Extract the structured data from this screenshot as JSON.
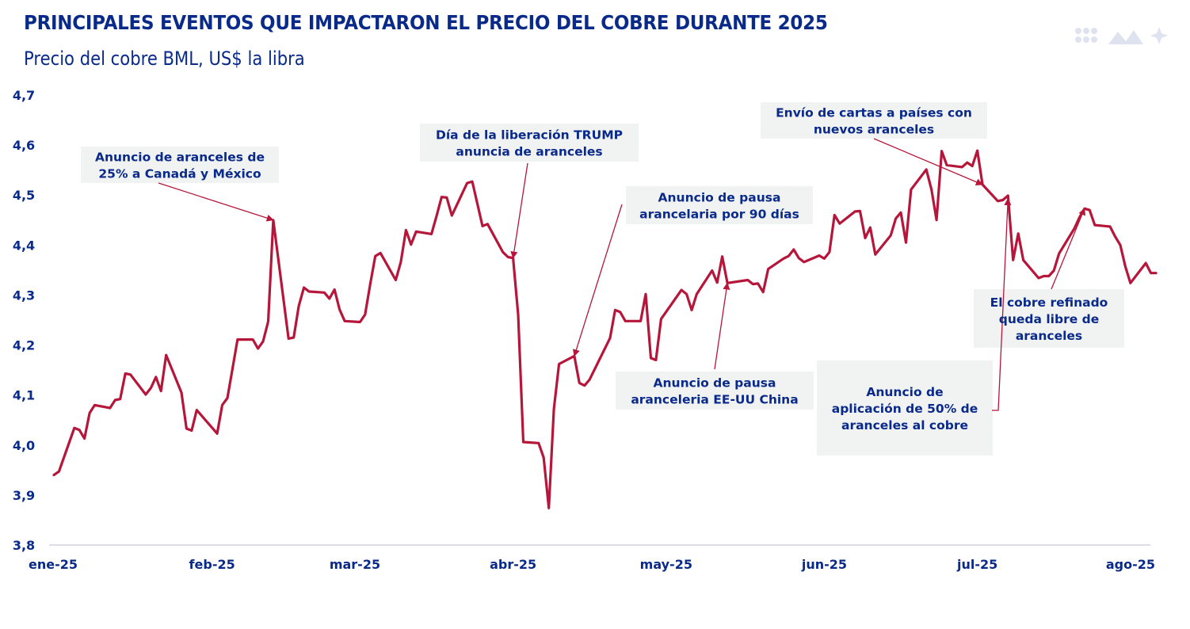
{
  "header": {
    "title": "PRINCIPALES EVENTOS QUE IMPACTARON EL PRECIO DEL COBRE DURANTE  2025",
    "subtitle": "Precio del cobre BML, US$ la libra"
  },
  "logo": {
    "icon": "brand-logo-icon"
  },
  "colors": {
    "line": "#b5163a",
    "text": "#0a2a8a",
    "box": "#f1f2f2",
    "axis": "#cfd4de"
  },
  "chart_data": {
    "type": "line",
    "title": "PRINCIPALES EVENTOS QUE IMPACTARON EL PRECIO DEL COBRE DURANTE  2025",
    "subtitle": "Precio del cobre BML, US$ la libra",
    "xlabel": "",
    "ylabel": "",
    "ylim": [
      3.8,
      4.7
    ],
    "yticks": [
      "4,7",
      "4,6",
      "4,5",
      "4,4",
      "4,3",
      "4,2",
      "4,1",
      "4,0",
      "3,9",
      "3,8"
    ],
    "xticks": [
      "ene-25",
      "feb-25",
      "mar-25",
      "abr-25",
      "may-25",
      "jun-25",
      "jul-25",
      "ago-25"
    ],
    "grid": false,
    "series": [
      {
        "name": "Precio del cobre BML",
        "color": "#b5163a",
        "points": [
          [
            0,
            3.94
          ],
          [
            1,
            3.947
          ],
          [
            4,
            4.034
          ],
          [
            5,
            4.03
          ],
          [
            6,
            4.013
          ],
          [
            7,
            4.064
          ],
          [
            8,
            4.08
          ],
          [
            11,
            4.074
          ],
          [
            12,
            4.09
          ],
          [
            13,
            4.092
          ],
          [
            14,
            4.143
          ],
          [
            15,
            4.141
          ],
          [
            18,
            4.101
          ],
          [
            19,
            4.114
          ],
          [
            20,
            4.136
          ],
          [
            21,
            4.108
          ],
          [
            22,
            4.18
          ],
          [
            25,
            4.105
          ],
          [
            26,
            4.033
          ],
          [
            27,
            4.029
          ],
          [
            28,
            4.07
          ],
          [
            32,
            4.023
          ],
          [
            33,
            4.08
          ],
          [
            34,
            4.094
          ],
          [
            35,
            4.152
          ],
          [
            36,
            4.211
          ],
          [
            39,
            4.211
          ],
          [
            40,
            4.193
          ],
          [
            41,
            4.207
          ],
          [
            42,
            4.247
          ],
          [
            43,
            4.45
          ],
          [
            46,
            4.213
          ],
          [
            47,
            4.215
          ],
          [
            48,
            4.278
          ],
          [
            49,
            4.315
          ],
          [
            50,
            4.307
          ],
          [
            53,
            4.305
          ],
          [
            54,
            4.293
          ],
          [
            55,
            4.311
          ],
          [
            56,
            4.271
          ],
          [
            57,
            4.248
          ],
          [
            60,
            4.246
          ],
          [
            61,
            4.261
          ],
          [
            62,
            4.322
          ],
          [
            63,
            4.378
          ],
          [
            64,
            4.384
          ],
          [
            67,
            4.33
          ],
          [
            68,
            4.366
          ],
          [
            69,
            4.43
          ],
          [
            70,
            4.401
          ],
          [
            71,
            4.427
          ],
          [
            74,
            4.422
          ],
          [
            75,
            4.458
          ],
          [
            76,
            4.496
          ],
          [
            77,
            4.495
          ],
          [
            78,
            4.459
          ],
          [
            81,
            4.524
          ],
          [
            82,
            4.527
          ],
          [
            84,
            4.438
          ],
          [
            85,
            4.442
          ],
          [
            88,
            4.386
          ],
          [
            89,
            4.376
          ],
          [
            90,
            4.374
          ],
          [
            91,
            4.261
          ],
          [
            92,
            4.006
          ],
          [
            95,
            4.004
          ],
          [
            96,
            3.975
          ],
          [
            97,
            3.874
          ],
          [
            98,
            4.072
          ],
          [
            99,
            4.162
          ],
          [
            102,
            4.178
          ],
          [
            103,
            4.124
          ],
          [
            104,
            4.119
          ],
          [
            105,
            4.131
          ],
          [
            109,
            4.214
          ],
          [
            110,
            4.27
          ],
          [
            111,
            4.266
          ],
          [
            112,
            4.248
          ],
          [
            115,
            4.248
          ],
          [
            116,
            4.302
          ],
          [
            117,
            4.174
          ],
          [
            118,
            4.17
          ],
          [
            119,
            4.252
          ],
          [
            123,
            4.31
          ],
          [
            124,
            4.302
          ],
          [
            125,
            4.27
          ],
          [
            126,
            4.302
          ],
          [
            129,
            4.349
          ],
          [
            130,
            4.325
          ],
          [
            131,
            4.377
          ],
          [
            132,
            4.324
          ],
          [
            136,
            4.33
          ],
          [
            137,
            4.322
          ],
          [
            138,
            4.323
          ],
          [
            139,
            4.306
          ],
          [
            140,
            4.352
          ],
          [
            143,
            4.373
          ],
          [
            144,
            4.378
          ],
          [
            145,
            4.391
          ],
          [
            146,
            4.374
          ],
          [
            147,
            4.366
          ],
          [
            150,
            4.379
          ],
          [
            151,
            4.373
          ],
          [
            152,
            4.386
          ],
          [
            153,
            4.46
          ],
          [
            154,
            4.443
          ],
          [
            157,
            4.467
          ],
          [
            158,
            4.468
          ],
          [
            159,
            4.414
          ],
          [
            160,
            4.435
          ],
          [
            161,
            4.381
          ],
          [
            164,
            4.419
          ],
          [
            165,
            4.453
          ],
          [
            166,
            4.465
          ],
          [
            167,
            4.405
          ],
          [
            168,
            4.511
          ],
          [
            171,
            4.551
          ],
          [
            172,
            4.511
          ],
          [
            173,
            4.45
          ],
          [
            174,
            4.588
          ],
          [
            175,
            4.56
          ],
          [
            178,
            4.556
          ],
          [
            179,
            4.565
          ],
          [
            180,
            4.558
          ],
          [
            181,
            4.589
          ],
          [
            182,
            4.521
          ],
          [
            185,
            4.488
          ],
          [
            186,
            4.49
          ],
          [
            187,
            4.499
          ],
          [
            188,
            4.37
          ],
          [
            189,
            4.423
          ],
          [
            190,
            4.37
          ],
          [
            193,
            4.334
          ],
          [
            194,
            4.338
          ],
          [
            195,
            4.338
          ],
          [
            196,
            4.349
          ],
          [
            197,
            4.383
          ],
          [
            200,
            4.433
          ],
          [
            201,
            4.455
          ],
          [
            202,
            4.473
          ],
          [
            203,
            4.47
          ],
          [
            204,
            4.44
          ],
          [
            207,
            4.437
          ],
          [
            208,
            4.417
          ],
          [
            209,
            4.4
          ],
          [
            210,
            4.357
          ],
          [
            211,
            4.324
          ],
          [
            214,
            4.364
          ],
          [
            215,
            4.344
          ],
          [
            216,
            4.344
          ]
        ]
      }
    ],
    "x_axis_note": "x = calendar day index from 1-Jan-2025",
    "annotations": [
      {
        "lines": [
          "Anuncio de aranceles de",
          "25% a Canadá y México"
        ],
        "day": 43,
        "value": 4.45
      },
      {
        "lines": [
          "Día de la liberación TRUMP",
          "anuncia de aranceles"
        ],
        "day": 90,
        "value": 4.374
      },
      {
        "lines": [
          "Anuncio de pausa",
          "arancelaria por 90 días"
        ],
        "day": 102,
        "value": 4.178
      },
      {
        "lines": [
          "Anuncio de pausa",
          "aranceleria EE-UU China"
        ],
        "day": 132,
        "value": 4.324
      },
      {
        "lines": [
          "Envío de cartas a países con",
          "nuevos aranceles"
        ],
        "day": 182,
        "value": 4.521
      },
      {
        "lines": [
          "Anuncio de",
          "aplicación de 50% de",
          "aranceles al cobre"
        ],
        "day": 187,
        "value": 4.499
      },
      {
        "lines": [
          "El cobre refinado",
          "queda libre de",
          "aranceles"
        ],
        "day": 202,
        "value": 4.473
      }
    ]
  }
}
